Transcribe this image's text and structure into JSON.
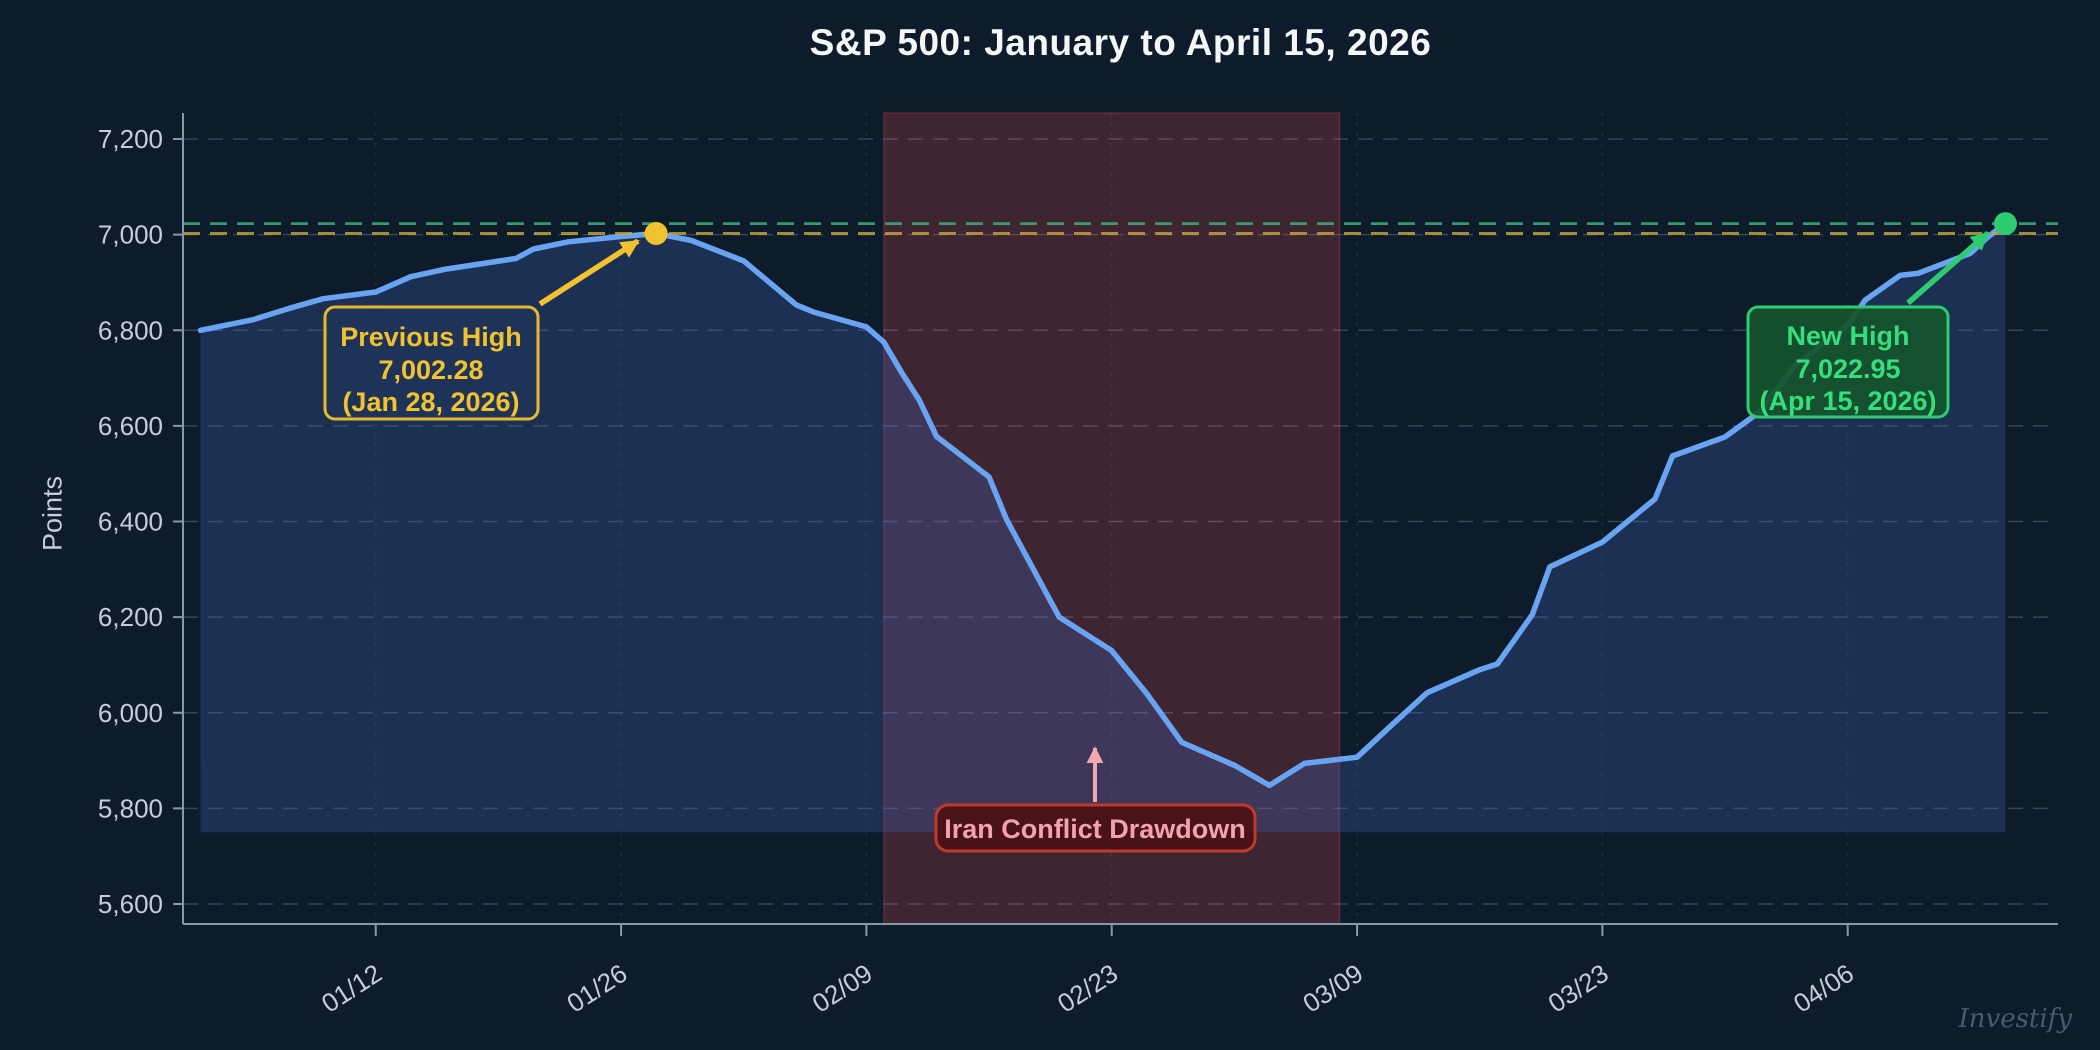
{
  "title": "S&P 500: January to April 15, 2026",
  "watermark": "Investify",
  "chart_data": {
    "type": "line",
    "title": "S&P 500: January to April 15, 2026",
    "xlabel": "",
    "ylabel": "Points",
    "grid": true,
    "legend": "none",
    "colors": {
      "line": "#69a4f3",
      "area_fill": "rgba(62,104,190,0.28)",
      "background": "#0e1b2a",
      "gridline": "rgba(160,180,200,0.28)",
      "axis": "#8a97a6",
      "tick_text": "#c3ced9",
      "previous_high": "#f2c230",
      "new_high": "#2ecc71",
      "drawdown_band": "rgba(205,60,72,0.26)",
      "drawdown_text": "#f2a3ab"
    },
    "y_axis": {
      "min": 5600,
      "max": 7200,
      "step": 200,
      "label": "Points",
      "ticks": [
        {
          "value": 7200,
          "label": "7,200"
        },
        {
          "value": 7000,
          "label": "7,000"
        },
        {
          "value": 6800,
          "label": "6,800"
        },
        {
          "value": 6600,
          "label": "6,600"
        },
        {
          "value": 6400,
          "label": "6,400"
        },
        {
          "value": 6200,
          "label": "6,200"
        },
        {
          "value": 6000,
          "label": "6,000"
        },
        {
          "value": 5800,
          "label": "5,800"
        },
        {
          "value": 5600,
          "label": "5,600"
        }
      ]
    },
    "x_axis": {
      "domain_start": "2026-01-01",
      "domain_end": "2026-04-18",
      "ticks": [
        {
          "date": "2026-01-12",
          "label": "01/12"
        },
        {
          "date": "2026-01-26",
          "label": "01/26"
        },
        {
          "date": "2026-02-09",
          "label": "02/09"
        },
        {
          "date": "2026-02-23",
          "label": "02/23"
        },
        {
          "date": "2026-03-09",
          "label": "03/09"
        },
        {
          "date": "2026-03-23",
          "label": "03/23"
        },
        {
          "date": "2026-04-06",
          "label": "04/06"
        }
      ]
    },
    "fill_baseline": 5750,
    "series": [
      {
        "name": "S&P 500",
        "points": [
          {
            "date": "2026-01-02",
            "value": 6800
          },
          {
            "date": "2026-01-05",
            "value": 6822
          },
          {
            "date": "2026-01-07",
            "value": 6845
          },
          {
            "date": "2026-01-09",
            "value": 6866
          },
          {
            "date": "2026-01-12",
            "value": 6880
          },
          {
            "date": "2026-01-14",
            "value": 6912
          },
          {
            "date": "2026-01-16",
            "value": 6928
          },
          {
            "date": "2026-01-20",
            "value": 6950
          },
          {
            "date": "2026-01-21",
            "value": 6970
          },
          {
            "date": "2026-01-23",
            "value": 6985
          },
          {
            "date": "2026-01-26",
            "value": 6996
          },
          {
            "date": "2026-01-28",
            "value": 7002.28
          },
          {
            "date": "2026-01-30",
            "value": 6988
          },
          {
            "date": "2026-02-02",
            "value": 6945
          },
          {
            "date": "2026-02-05",
            "value": 6853
          },
          {
            "date": "2026-02-06",
            "value": 6838
          },
          {
            "date": "2026-02-09",
            "value": 6807
          },
          {
            "date": "2026-02-10",
            "value": 6775
          },
          {
            "date": "2026-02-11",
            "value": 6712
          },
          {
            "date": "2026-02-12",
            "value": 6655
          },
          {
            "date": "2026-02-13",
            "value": 6578
          },
          {
            "date": "2026-02-16",
            "value": 6493
          },
          {
            "date": "2026-02-17",
            "value": 6404
          },
          {
            "date": "2026-02-20",
            "value": 6200
          },
          {
            "date": "2026-02-23",
            "value": 6130
          },
          {
            "date": "2026-02-25",
            "value": 6040
          },
          {
            "date": "2026-02-27",
            "value": 5938
          },
          {
            "date": "2026-03-02",
            "value": 5890
          },
          {
            "date": "2026-03-04",
            "value": 5848
          },
          {
            "date": "2026-03-06",
            "value": 5894
          },
          {
            "date": "2026-03-09",
            "value": 5907
          },
          {
            "date": "2026-03-11",
            "value": 5975
          },
          {
            "date": "2026-03-13",
            "value": 6042
          },
          {
            "date": "2026-03-16",
            "value": 6090
          },
          {
            "date": "2026-03-17",
            "value": 6102
          },
          {
            "date": "2026-03-19",
            "value": 6205
          },
          {
            "date": "2026-03-20",
            "value": 6305
          },
          {
            "date": "2026-03-23",
            "value": 6357
          },
          {
            "date": "2026-03-26",
            "value": 6447
          },
          {
            "date": "2026-03-27",
            "value": 6537
          },
          {
            "date": "2026-03-30",
            "value": 6577
          },
          {
            "date": "2026-04-01",
            "value": 6630
          },
          {
            "date": "2026-04-03",
            "value": 6727
          },
          {
            "date": "2026-04-06",
            "value": 6811
          },
          {
            "date": "2026-04-07",
            "value": 6863
          },
          {
            "date": "2026-04-09",
            "value": 6915
          },
          {
            "date": "2026-04-10",
            "value": 6919
          },
          {
            "date": "2026-04-13",
            "value": 6961
          },
          {
            "date": "2026-04-14",
            "value": 6995
          },
          {
            "date": "2026-04-15",
            "value": 7022.95
          }
        ]
      }
    ],
    "annotations": {
      "previous_high": {
        "line1": "Previous High",
        "line2": "7,002.28",
        "line3": "(Jan 28, 2026)",
        "value": 7002.28,
        "date": "2026-01-28"
      },
      "new_high": {
        "line1": "New High",
        "line2": "7,022.95",
        "line3": "(Apr 15, 2026)",
        "value": 7022.95,
        "date": "2026-04-15"
      },
      "drawdown": {
        "label": "Iran Conflict Drawdown",
        "start": "2026-02-10",
        "end": "2026-03-08"
      }
    }
  }
}
